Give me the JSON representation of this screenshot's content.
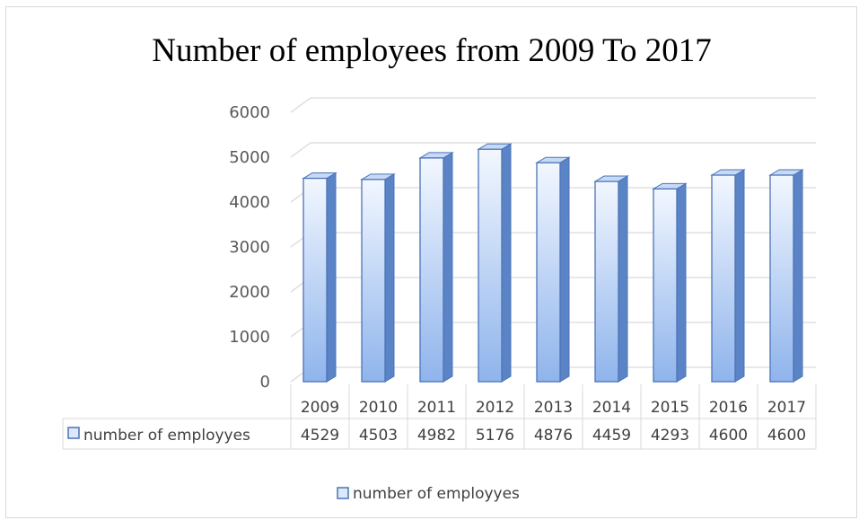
{
  "chart_data": {
    "type": "bar",
    "title": "Number of employees from 2009 To 2017",
    "xlabel": "",
    "ylabel": "",
    "categories": [
      "2009",
      "2010",
      "2011",
      "2012",
      "2013",
      "2014",
      "2015",
      "2016",
      "2017"
    ],
    "series": [
      {
        "name": "number of employyes",
        "values": [
          4529,
          4503,
          4982,
          5176,
          4876,
          4459,
          4293,
          4600,
          4600
        ]
      }
    ],
    "ylim": [
      0,
      6000
    ],
    "yticks": [
      0,
      1000,
      2000,
      3000,
      4000,
      5000,
      6000
    ],
    "grid": true,
    "three_d": true,
    "data_table": true,
    "legend": "bottom",
    "colors": {
      "bar_front_top": "#f2f7ff",
      "bar_front_bottom": "#8fb4ec",
      "bar_side": "#5b84c6",
      "bar_top": "#c8d9f5",
      "bar_edge": "#4a74b8",
      "legend_fill": "#dce8fb",
      "legend_edge": "#4a74b8",
      "grid": "#d9d9d9"
    }
  }
}
